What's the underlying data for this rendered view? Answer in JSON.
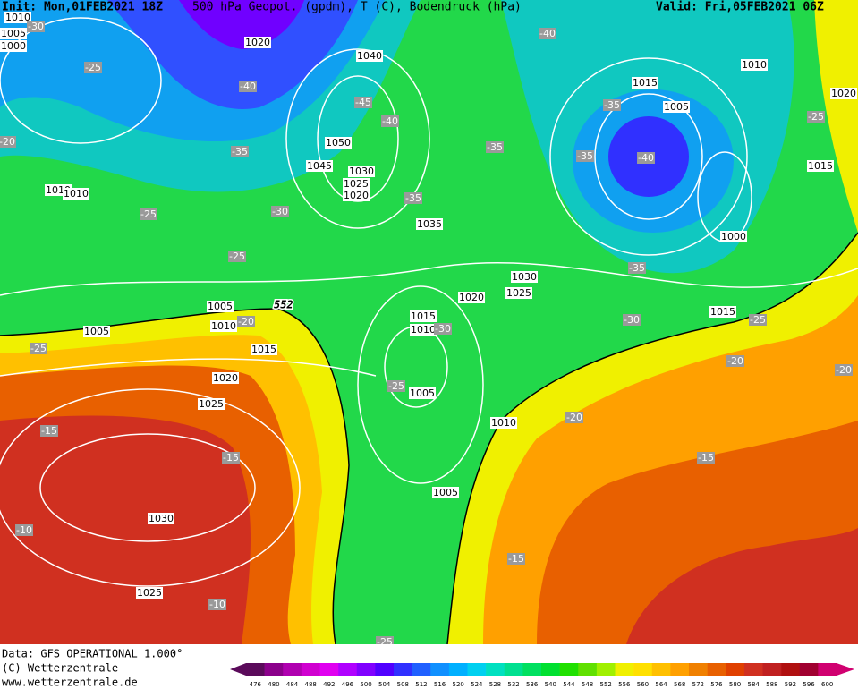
{
  "header": {
    "init": "Init: Mon,01FEB2021 18Z",
    "title": "500 hPa Geopot. (gpdm), T (C), Bodendruck (hPa)",
    "valid": "Valid: Fri,05FEB2021 06Z"
  },
  "pressure_labels": [
    "1010",
    "1005",
    "1000",
    "1020",
    "1040",
    "1010",
    "1020",
    "1015",
    "1005",
    "1050",
    "1045",
    "1030",
    "1025",
    "1020",
    "1015",
    "1010",
    "1010",
    "1035",
    "1000",
    "1030",
    "1025",
    "1020",
    "1005",
    "1010",
    "1015",
    "1010",
    "1015",
    "1005",
    "1015",
    "1020",
    "1025",
    "1005",
    "1010",
    "1005",
    "1030",
    "1025"
  ],
  "temperature_labels": [
    "-30",
    "-25",
    "-40",
    "-45",
    "-40",
    "-35",
    "-20",
    "-40",
    "-35",
    "-35",
    "-35",
    "-40",
    "-25",
    "-30",
    "-35",
    "-25",
    "-25",
    "-35",
    "-20",
    "-30",
    "-25",
    "-30",
    "-25",
    "-20",
    "-20",
    "-25",
    "-20",
    "-15",
    "-15",
    "-15",
    "-10",
    "-15",
    "-10",
    "-25"
  ],
  "contour_label": "552",
  "footer": [
    "Data: GFS OPERATIONAL 1.000°",
    "(C) Wetterzentrale",
    "www.wetterzentrale.de"
  ],
  "legend": {
    "values": [
      476,
      480,
      484,
      488,
      492,
      496,
      500,
      504,
      508,
      512,
      516,
      520,
      524,
      528,
      532,
      536,
      540,
      544,
      548,
      552,
      556,
      560,
      564,
      568,
      572,
      576,
      580,
      584,
      588,
      592,
      596,
      600
    ],
    "colors": [
      "#5a0a5a",
      "#8b008b",
      "#b000b0",
      "#d000d0",
      "#e000f0",
      "#b000ff",
      "#8000ff",
      "#5000ff",
      "#3030ff",
      "#2060ff",
      "#1090ff",
      "#00b0ff",
      "#00d0f0",
      "#00e0c0",
      "#00e090",
      "#00e060",
      "#00e030",
      "#20e000",
      "#60e000",
      "#a0f000",
      "#f0f000",
      "#ffe000",
      "#ffc000",
      "#ffa000",
      "#f08000",
      "#e86000",
      "#e04000",
      "#d03020",
      "#c02020",
      "#b01010",
      "#a00030",
      "#d00070"
    ]
  }
}
